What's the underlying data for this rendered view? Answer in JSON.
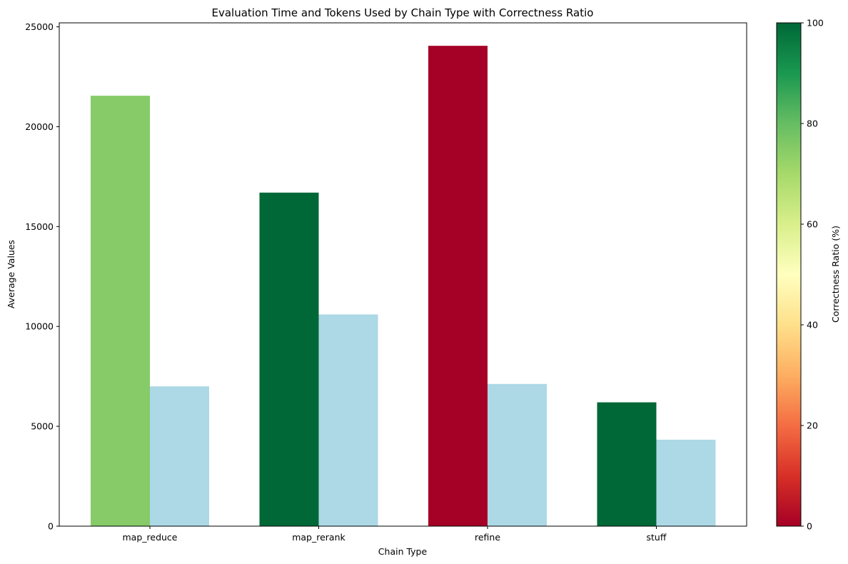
{
  "chart_data": {
    "type": "bar",
    "title": "Evaluation Time and Tokens Used by Chain Type with Correctness Ratio",
    "xlabel": "Chain Type",
    "ylabel": "Average Values",
    "categories": [
      "map_reduce",
      "map_rerank",
      "refine",
      "stuff"
    ],
    "ylim": [
      0,
      25200
    ],
    "yticks": [
      0,
      5000,
      10000,
      15000,
      20000,
      25000
    ],
    "series": [
      {
        "values": [
          21550,
          16700,
          24050,
          6200
        ],
        "correctness_ratio": [
          75,
          100,
          0,
          100
        ],
        "color_by": "correctness_ratio"
      },
      {
        "values": [
          7000,
          10600,
          7120,
          4330
        ],
        "color": "#add8e6"
      }
    ],
    "colorbar": {
      "label": "Correctness Ratio (%)",
      "colormap": "RdYlGn",
      "range": [
        0,
        100
      ],
      "ticks": [
        0,
        20,
        40,
        60,
        80,
        100
      ],
      "stops": [
        "#a50026",
        "#d73027",
        "#f46d43",
        "#fdae61",
        "#fee08b",
        "#ffffbf",
        "#d9ef8b",
        "#a6d96a",
        "#66bd63",
        "#1a9850",
        "#006837"
      ]
    },
    "grid": false,
    "legend": "none"
  }
}
